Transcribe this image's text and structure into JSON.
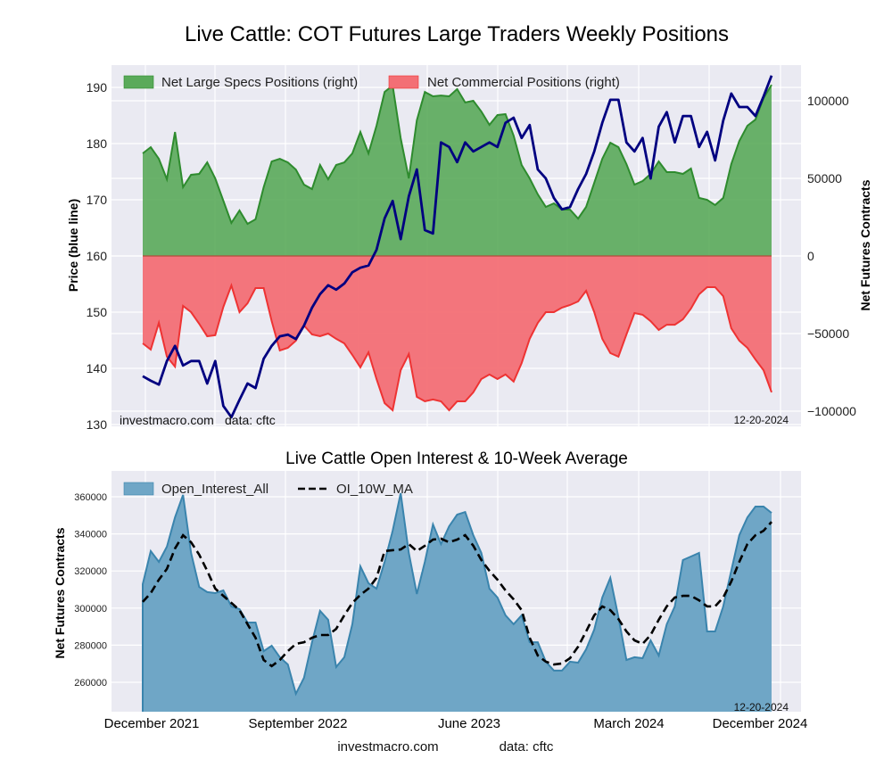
{
  "chart_data": [
    {
      "type": "area",
      "title": "Live Cattle: COT Futures Large Traders Weekly Positions",
      "xlabel": "",
      "ylabel": "Price (blue line)",
      "ylabel_right": "Net Futures Contracts",
      "date_start": "2021-12",
      "date_end": "2024-12-20",
      "sampling": "approx. every 2 weeks",
      "ylim_left": [
        130,
        193
      ],
      "ylim_right": [
        -101000,
        105000
      ],
      "yticks_left": [
        130,
        140,
        150,
        160,
        170,
        180,
        190
      ],
      "yticks_right": [
        -100000,
        -50000,
        0,
        50000,
        100000
      ],
      "yticks_right_labels": [
        "−100000",
        "−50000",
        "0",
        "50000",
        "100000"
      ],
      "grid": true,
      "legend_position": "top-left",
      "watermark_left": "investmacro.com",
      "watermark_mid": "data: cftc",
      "date_label": "12-20-2024",
      "series": [
        {
          "name": "Net Large Specs Positions (right)",
          "axis": "right",
          "style": "area",
          "color": "#2e8b2e",
          "fill": "#5aaa5a",
          "values": [
            66100,
            70100,
            62600,
            49400,
            79900,
            44300,
            52300,
            52900,
            60300,
            50000,
            35600,
            21300,
            29300,
            20700,
            23600,
            44300,
            60900,
            62600,
            60300,
            55700,
            46000,
            43100,
            58600,
            49400,
            58600,
            60300,
            66100,
            79900,
            66100,
            83900,
            105700,
            109800,
            75900,
            50000,
            87400,
            105700,
            102900,
            103400,
            102900,
            107500,
            98900,
            100000,
            93100,
            84500,
            90800,
            91400,
            77600,
            58600,
            50000,
            39700,
            31600,
            33900,
            29900,
            29900,
            24100,
            31600,
            47100,
            62600,
            73000,
            70100,
            59200,
            46000,
            48300,
            52900,
            60900,
            54000,
            54000,
            52900,
            56300,
            37400,
            36200,
            32800,
            37400,
            59200,
            74100,
            83900,
            87900,
            101700,
            110300
          ]
        },
        {
          "name": "Net Commercial Positions (right)",
          "axis": "right",
          "style": "area",
          "color": "#ee3333",
          "fill": "#f36f75",
          "values": [
            -56300,
            -60300,
            -43100,
            -64900,
            -71300,
            -32200,
            -36200,
            -43700,
            -51700,
            -51100,
            -32800,
            -19000,
            -36200,
            -30500,
            -20700,
            -20700,
            -42000,
            -60900,
            -59200,
            -54600,
            -44800,
            -50600,
            -51700,
            -50000,
            -53400,
            -56300,
            -63800,
            -71800,
            -62100,
            -79300,
            -94800,
            -99400,
            -73600,
            -63200,
            -90800,
            -93700,
            -92500,
            -93700,
            -99400,
            -93700,
            -93700,
            -87900,
            -79300,
            -76400,
            -79300,
            -76400,
            -81000,
            -69000,
            -53400,
            -43100,
            -36200,
            -36200,
            -33300,
            -31600,
            -29300,
            -22400,
            -36200,
            -53400,
            -62600,
            -64900,
            -50600,
            -36800,
            -37900,
            -42000,
            -47700,
            -44300,
            -44300,
            -40800,
            -33900,
            -24700,
            -20100,
            -20100,
            -25900,
            -46600,
            -54600,
            -59200,
            -66700,
            -73600,
            -87900
          ]
        },
        {
          "name": "Price",
          "axis": "left",
          "style": "line",
          "color": "#000080",
          "values": [
            138.6,
            137.8,
            137.1,
            141.3,
            144.0,
            140.5,
            141.3,
            141.3,
            137.3,
            141.3,
            133.3,
            131.3,
            134.4,
            137.3,
            136.5,
            141.7,
            144.0,
            145.7,
            146.0,
            145.2,
            147.6,
            150.8,
            153.2,
            154.8,
            154.0,
            155.1,
            157.1,
            157.9,
            158.3,
            161.1,
            166.7,
            169.8,
            163.0,
            170.6,
            175.4,
            164.6,
            164.0,
            180.2,
            179.4,
            176.7,
            180.2,
            178.6,
            179.4,
            180.2,
            179.4,
            183.7,
            184.6,
            181.0,
            183.3,
            175.4,
            173.8,
            170.3,
            168.3,
            168.7,
            171.9,
            174.6,
            178.6,
            183.7,
            187.8,
            187.8,
            180.2,
            178.6,
            181.0,
            173.8,
            183.0,
            185.6,
            180.2,
            184.9,
            184.9,
            179.4,
            182.1,
            177.0,
            184.1,
            188.9,
            186.5,
            186.5,
            184.9,
            188.4,
            192.1
          ]
        }
      ]
    },
    {
      "type": "area",
      "title": "Live Cattle Open Interest & 10-Week Average",
      "xlabel": "",
      "ylabel": "Net Futures Contracts",
      "ylim": [
        244000,
        374000
      ],
      "yticks": [
        260000,
        280000,
        300000,
        320000,
        340000,
        360000
      ],
      "xtick_labels": [
        "December 2021",
        "September 2022",
        "June 2023",
        "March 2024",
        "December 2024"
      ],
      "grid": true,
      "legend_position": "top-left",
      "date_label": "12-20-2024",
      "series": [
        {
          "name": "Open_Interest_All",
          "style": "area",
          "color": "#3a84ad",
          "fill": "#6fa6c6",
          "values": [
            312900,
            330700,
            324900,
            333100,
            348900,
            361000,
            329700,
            311400,
            308600,
            308100,
            309500,
            300900,
            299400,
            292200,
            292200,
            276800,
            279700,
            273500,
            269600,
            253800,
            262400,
            281600,
            298500,
            293700,
            268200,
            273500,
            291300,
            322500,
            313400,
            310500,
            324900,
            341700,
            361900,
            329700,
            307600,
            324900,
            345100,
            334500,
            344100,
            350400,
            351800,
            339300,
            329700,
            310500,
            305700,
            296100,
            291300,
            296100,
            281600,
            281600,
            271100,
            266300,
            266300,
            271100,
            270600,
            277800,
            288400,
            305700,
            316300,
            295100,
            272000,
            273500,
            273000,
            282600,
            274400,
            291300,
            300900,
            325900,
            327800,
            329700,
            287400,
            287400,
            300900,
            320100,
            339300,
            348900,
            354700,
            354700,
            351300
          ]
        },
        {
          "name": "OI_10W_MA",
          "style": "dashed-line",
          "color": "#000000",
          "values": [
            303300,
            308100,
            315300,
            321100,
            332100,
            339300,
            335500,
            328800,
            320100,
            310500,
            306600,
            302800,
            298900,
            291300,
            284000,
            272000,
            268700,
            272000,
            276800,
            280700,
            281600,
            284000,
            285500,
            285500,
            288800,
            296100,
            302800,
            307100,
            310500,
            316300,
            330700,
            331200,
            331600,
            334500,
            330700,
            333600,
            336900,
            337400,
            335500,
            336900,
            339300,
            333600,
            325900,
            320100,
            315300,
            309500,
            304700,
            298900,
            284000,
            274400,
            271100,
            269600,
            270100,
            273000,
            279200,
            287400,
            296100,
            300900,
            298900,
            294100,
            287400,
            282600,
            280700,
            285500,
            293700,
            300900,
            305700,
            306600,
            306600,
            304200,
            300900,
            300900,
            305700,
            314300,
            324900,
            334500,
            339300,
            341700,
            346500
          ]
        }
      ]
    }
  ],
  "footer": {
    "site": "investmacro.com",
    "source": "data: cftc"
  }
}
